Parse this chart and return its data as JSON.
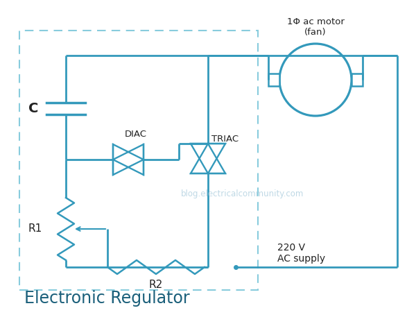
{
  "title": "Electronic Regulator",
  "watermark": "blog.electricalcommunity.com",
  "line_color": "#3399bb",
  "wire_lw": 2.0,
  "bg_color": "#ffffff",
  "text_color": "#222222",
  "dashed_color": "#88ccdd",
  "label_DIAC": "DIAC",
  "label_TRIAC": "TRIAC",
  "label_C": "C",
  "label_R1": "R1",
  "label_R2": "R2",
  "label_motor": "1Φ ac motor\n(fan)",
  "label_supply": "220 V\nAC supply",
  "title_fontsize": 17,
  "label_fontsize": 11
}
